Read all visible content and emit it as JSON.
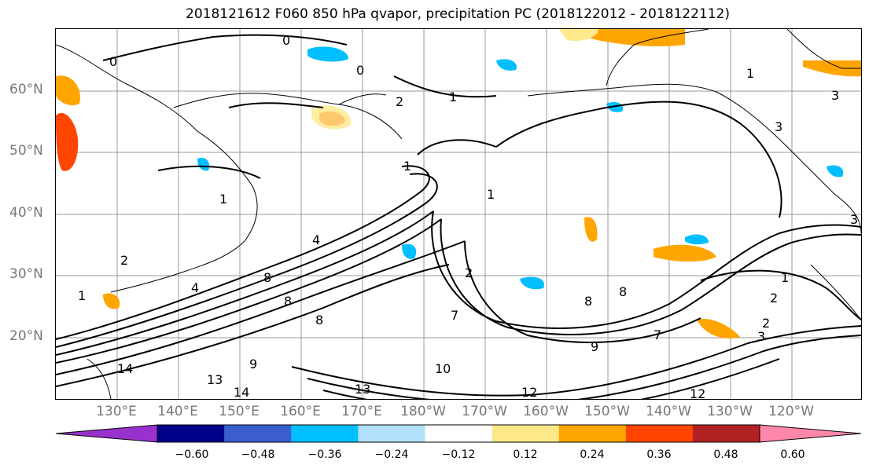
{
  "title": "2018121612 F060 850 hPa qvapor, precipitation PC (2018122012 - 2018122112)",
  "lat_labels": [
    "60°N",
    "50°N",
    "40°N",
    "30°N",
    "20°N"
  ],
  "lon_labels": [
    "130°E",
    "140°E",
    "150°E",
    "160°E",
    "170°E",
    "180°W",
    "170°W",
    "160°W",
    "150°W",
    "140°W",
    "130°W",
    "120°W"
  ],
  "colorbar": {
    "tick_labels": [
      "−0.60",
      "−0.48",
      "−0.36",
      "−0.24",
      "−0.12",
      "0.12",
      "0.24",
      "0.36",
      "0.48",
      "0.60"
    ],
    "colors": [
      "#9932cc",
      "#00008b",
      "#3a5fcd",
      "#00bfff",
      "#b0e0fa",
      "#ffffff",
      "#fde98a",
      "#ffa500",
      "#ff4500",
      "#b22222",
      "#ff88aa"
    ]
  },
  "contour_labels": [
    "0",
    "0",
    "0",
    "1",
    "1",
    "1",
    "1",
    "1",
    "1",
    "1",
    "2",
    "2",
    "2",
    "2",
    "2",
    "3",
    "3",
    "3",
    "3",
    "4",
    "4",
    "7",
    "7",
    "8",
    "8",
    "8",
    "8",
    "8",
    "9",
    "9",
    "10",
    "12",
    "12",
    "13",
    "13",
    "14",
    "14"
  ]
}
